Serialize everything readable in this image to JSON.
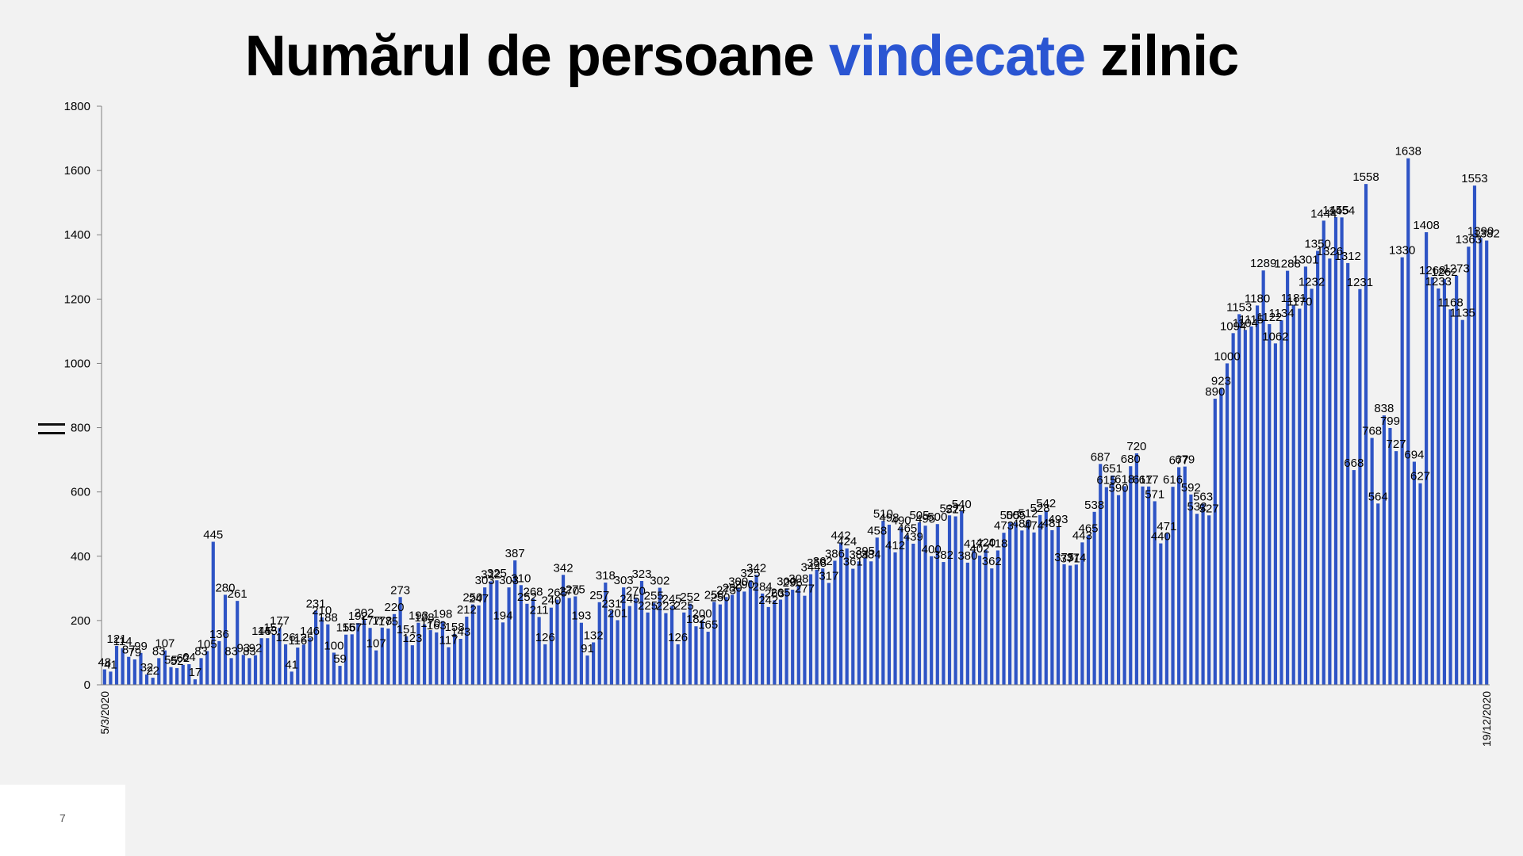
{
  "title": {
    "part1": "Numărul de persoane ",
    "accent": "vindecate",
    "part2": " zilnic"
  },
  "slide_number": "7",
  "colors": {
    "bar": "#2e54c5",
    "accent": "#2a55d2",
    "background": "#f2f2f2"
  },
  "chart_data": {
    "type": "bar",
    "title": "Numărul de persoane vindecate zilnic",
    "xlabel": "",
    "ylabel": "",
    "ylim": [
      0,
      1800
    ],
    "yticks": [
      0,
      200,
      400,
      600,
      800,
      1000,
      1200,
      1400,
      1600,
      1800
    ],
    "grid": false,
    "legend": "none",
    "first_category": "5/3/2020",
    "last_category": "19/12/2020",
    "values": [
      48,
      41,
      121,
      114,
      87,
      79,
      99,
      32,
      22,
      83,
      107,
      55,
      52,
      62,
      64,
      17,
      83,
      105,
      445,
      136,
      280,
      83,
      261,
      93,
      83,
      92,
      145,
      145,
      157,
      177,
      126,
      41,
      116,
      125,
      146,
      231,
      210,
      188,
      100,
      59,
      156,
      157,
      192,
      202,
      177,
      107,
      178,
      175,
      220,
      273,
      151,
      123,
      193,
      188,
      170,
      163,
      198,
      117,
      158,
      143,
      212,
      250,
      247,
      303,
      322,
      325,
      194,
      303,
      387,
      310,
      252,
      268,
      211,
      126,
      240,
      265,
      342,
      270,
      275,
      193,
      91,
      132,
      257,
      318,
      231,
      201,
      303,
      245,
      270,
      323,
      225,
      255,
      302,
      223,
      245,
      126,
      225,
      252,
      182,
      200,
      165,
      258,
      250,
      273,
      280,
      300,
      290,
      325,
      342,
      284,
      242,
      263,
      265,
      300,
      296,
      308,
      277,
      344,
      358,
      362,
      317,
      386,
      442,
      424,
      361,
      384,
      395,
      384,
      458,
      510,
      498,
      412,
      490,
      465,
      439,
      505,
      495,
      400,
      500,
      382,
      527,
      524,
      540,
      380,
      417,
      402,
      420,
      362,
      418,
      473,
      505,
      505,
      480,
      512,
      474,
      528,
      542,
      481,
      493,
      375,
      371,
      374,
      443,
      465,
      538,
      687,
      615,
      651,
      590,
      618,
      680,
      720,
      617,
      617,
      571,
      440,
      471,
      616,
      677,
      679,
      592,
      532,
      563,
      527,
      890,
      923,
      1000,
      1094,
      1153,
      1104,
      1115,
      1180,
      1289,
      1122,
      1062,
      1134,
      1288,
      1181,
      1170,
      1301,
      1232,
      1350,
      1444,
      1326,
      1455,
      1454,
      1312,
      668,
      1231,
      1558,
      768,
      564,
      838,
      799,
      727,
      1330,
      1638,
      694,
      627,
      1408,
      1268,
      1233,
      1262,
      1168,
      1273,
      1135,
      1363,
      1553,
      1390,
      1382
    ]
  }
}
